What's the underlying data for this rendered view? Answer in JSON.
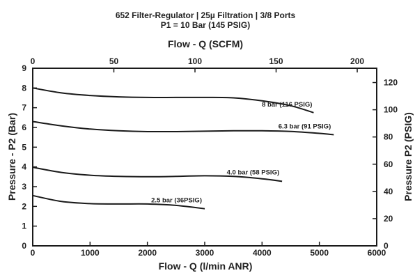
{
  "chart_data": {
    "type": "line",
    "title": "652 Filter-Regulator | 25µ Filtration | 3/8 Ports",
    "subtitle": "P1 = 10 Bar (145 PSIG)",
    "xlabel": "Flow - Q (l/min ANR)",
    "x2label": "Flow - Q (SCFM)",
    "ylabel": "Pressure - P2 (Bar)",
    "y2label": "Pressure P2 (PSIG)",
    "xlim": [
      0,
      6000
    ],
    "ylim": [
      0,
      9
    ],
    "x2lim": [
      0,
      212
    ],
    "y2lim": [
      0,
      130.5
    ],
    "xticks": [
      0,
      1000,
      2000,
      3000,
      4000,
      5000,
      6000
    ],
    "yticks": [
      0,
      1,
      2,
      3,
      4,
      5,
      6,
      7,
      8,
      9
    ],
    "x2ticks": [
      0,
      50,
      100,
      150,
      200
    ],
    "y2ticks": [
      0,
      20,
      40,
      60,
      80,
      100,
      120
    ],
    "grid": false,
    "legend": "none (inline curve labels)",
    "series": [
      {
        "name": "8 bar (116 PSIG)",
        "x": [
          0,
          500,
          1000,
          1500,
          2000,
          2500,
          3000,
          3500,
          4000,
          4500,
          4900
        ],
        "y": [
          8.0,
          7.75,
          7.62,
          7.55,
          7.52,
          7.52,
          7.52,
          7.5,
          7.35,
          7.1,
          6.75
        ]
      },
      {
        "name": "6.3 bar (91 PSIG)",
        "x": [
          0,
          500,
          1000,
          1500,
          2000,
          2500,
          3000,
          3500,
          4000,
          4500,
          5000,
          5250
        ],
        "y": [
          6.3,
          6.08,
          5.92,
          5.83,
          5.79,
          5.79,
          5.81,
          5.83,
          5.83,
          5.8,
          5.7,
          5.63
        ]
      },
      {
        "name": "4.0 bar (58 PSIG)",
        "x": [
          0,
          500,
          1000,
          1500,
          2000,
          2500,
          3000,
          3500,
          4000,
          4350
        ],
        "y": [
          3.98,
          3.72,
          3.58,
          3.52,
          3.5,
          3.52,
          3.55,
          3.52,
          3.4,
          3.27
        ]
      },
      {
        "name": "2.5 bar (36PSIG)",
        "x": [
          0,
          500,
          1000,
          1500,
          2000,
          2500,
          3000
        ],
        "y": [
          2.55,
          2.25,
          2.14,
          2.12,
          2.12,
          2.05,
          1.88
        ]
      }
    ]
  }
}
